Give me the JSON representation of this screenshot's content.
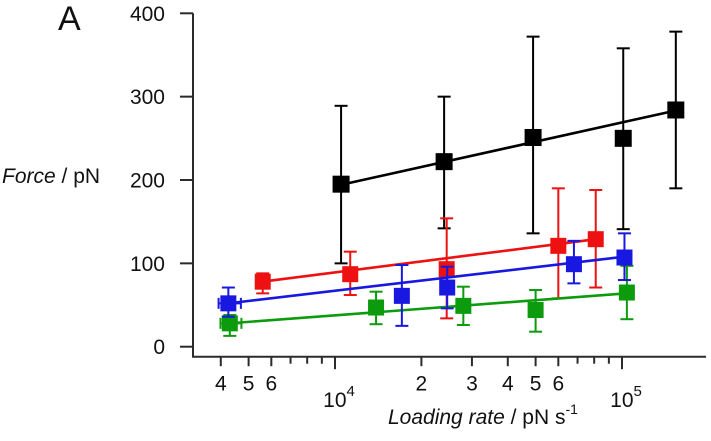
{
  "panel_label": "A",
  "y_axis": {
    "title_italic": "Force",
    "title_rest": " / pN"
  },
  "x_axis": {
    "title_italic": "Loading rate",
    "title_rest": " / pN s",
    "title_sup": "-1"
  },
  "chart_data": {
    "type": "scatter",
    "title": "",
    "xlabel": "Loading rate / pN s^-1",
    "ylabel": "Force / pN",
    "x_scale": "log",
    "xlim": [
      3200,
      196000
    ],
    "ylim": [
      0,
      400
    ],
    "grid": false,
    "legend": "none",
    "y_ticks": [
      0,
      100,
      200,
      300,
      400
    ],
    "x_ticks": [
      {
        "v": 4000,
        "label": "4"
      },
      {
        "v": 5000,
        "label": "5"
      },
      {
        "v": 6000,
        "label": "6"
      },
      {
        "v": 7000
      },
      {
        "v": 8000
      },
      {
        "v": 9000
      },
      {
        "v": 10000,
        "power": {
          "base": "10",
          "sup": "4"
        }
      },
      {
        "v": 20000,
        "label": "2"
      },
      {
        "v": 30000,
        "label": "3"
      },
      {
        "v": 40000,
        "label": "4"
      },
      {
        "v": 50000,
        "label": "5"
      },
      {
        "v": 60000,
        "label": "6"
      },
      {
        "v": 70000
      },
      {
        "v": 80000
      },
      {
        "v": 90000
      },
      {
        "v": 100000,
        "power": {
          "base": "10",
          "sup": "5"
        }
      }
    ],
    "series": [
      {
        "name": "black",
        "color": "#000000",
        "marker_size": 17,
        "points": [
          {
            "x": 10500,
            "y": 195,
            "yerr": [
              94,
              95
            ]
          },
          {
            "x": 24000,
            "y": 222,
            "yerr": [
              78,
              80
            ]
          },
          {
            "x": 49000,
            "y": 251,
            "yerr": [
              121,
              115
            ]
          },
          {
            "x": 101000,
            "y": 250,
            "yerr": [
              108,
              109
            ]
          },
          {
            "x": 154000,
            "y": 284,
            "yerr": [
              94,
              94
            ]
          }
        ],
        "fit": {
          "x1": 10100,
          "y1": 193,
          "x2": 157000,
          "y2": 284
        }
      },
      {
        "name": "red",
        "color": "#ed1111",
        "marker_size": 16,
        "points": [
          {
            "x": 5600,
            "y": 78,
            "yerr": [
              10,
              14
            ]
          },
          {
            "x": 11300,
            "y": 87,
            "yerr": [
              27,
              25
            ]
          },
          {
            "x": 24500,
            "y": 93,
            "yerr": [
              61,
              59
            ]
          },
          {
            "x": 60000,
            "y": 121,
            "yerr": [
              69,
              63
            ]
          },
          {
            "x": 81000,
            "y": 129,
            "yerr": [
              59,
              58
            ]
          }
        ],
        "fit": {
          "x1": 5570,
          "y1": 78,
          "x2": 81200,
          "y2": 129
        }
      },
      {
        "name": "green",
        "color": "#0c9b0c",
        "marker_size": 16,
        "points": [
          {
            "x": 4300,
            "y": 28,
            "yerr": [
              10,
              15
            ],
            "xerr": [
              3990,
              4720
            ]
          },
          {
            "x": 13900,
            "y": 47,
            "yerr": [
              19,
              20
            ]
          },
          {
            "x": 28000,
            "y": 49,
            "yerr": [
              23,
              23
            ]
          },
          {
            "x": 50000,
            "y": 44,
            "yerr": [
              24,
              26
            ]
          },
          {
            "x": 104000,
            "y": 65,
            "yerr": [
              32,
              32
            ]
          }
        ],
        "fit": {
          "x1": 4260,
          "y1": 28,
          "x2": 104000,
          "y2": 64
        }
      },
      {
        "name": "blue",
        "color": "#1818e0",
        "marker_size": 16,
        "points": [
          {
            "x": 4250,
            "y": 52,
            "yerr": [
              19,
              16
            ],
            "xerr": [
              3930,
              4700
            ]
          },
          {
            "x": 17100,
            "y": 61,
            "yerr": [
              37,
              36
            ]
          },
          {
            "x": 24600,
            "y": 71,
            "yerr": [
              25,
              25
            ]
          },
          {
            "x": 68000,
            "y": 99,
            "yerr": [
              28,
              23
            ]
          },
          {
            "x": 102000,
            "y": 107,
            "yerr": [
              29,
              27
            ]
          }
        ],
        "fit": {
          "x1": 4240,
          "y1": 52,
          "x2": 102000,
          "y2": 108
        }
      }
    ]
  }
}
